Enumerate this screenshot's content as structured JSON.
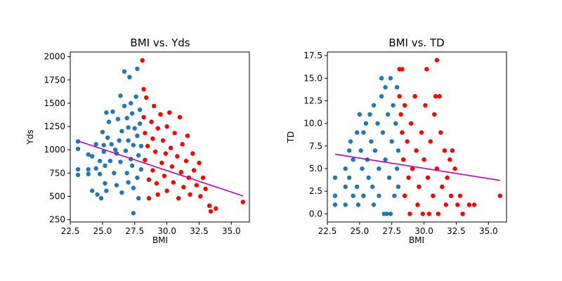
{
  "colors": {
    "blue": "#1f77b4",
    "red": "#ff0000",
    "fit": "#bf00bf"
  },
  "chart_data": [
    {
      "type": "scatter",
      "title": "BMI vs. Yds",
      "xlabel": "BMI",
      "ylabel": "Yds",
      "xlim": [
        22.5,
        36.4
      ],
      "ylim": [
        225,
        2050
      ],
      "xticks": [
        22.5,
        25.0,
        27.5,
        30.0,
        32.5,
        35.0
      ],
      "xtick_labels": [
        "22.5",
        "25.0",
        "27.5",
        "30.0",
        "32.5",
        "35.0"
      ],
      "yticks": [
        250,
        500,
        750,
        1000,
        1250,
        1500,
        1750,
        2000
      ],
      "ytick_labels": [
        "250",
        "500",
        "750",
        "1000",
        "1250",
        "1500",
        "1750",
        "2000"
      ],
      "grid": false,
      "series": [
        {
          "color": "#1f77b4",
          "points": [
            [
              23.1,
              1090
            ],
            [
              23.1,
              1010
            ],
            [
              23.1,
              790
            ],
            [
              23.1,
              730
            ],
            [
              23.9,
              950
            ],
            [
              23.9,
              790
            ],
            [
              23.9,
              740
            ],
            [
              24.2,
              930
            ],
            [
              24.2,
              560
            ],
            [
              24.5,
              1060
            ],
            [
              24.5,
              800
            ],
            [
              24.6,
              520
            ],
            [
              24.8,
              880
            ],
            [
              24.8,
              740
            ],
            [
              24.9,
              480
            ],
            [
              25.0,
              1190
            ],
            [
              25.1,
              1050
            ],
            [
              25.1,
              980
            ],
            [
              25.2,
              830
            ],
            [
              25.2,
              640
            ],
            [
              25.3,
              1400
            ],
            [
              25.3,
              560
            ],
            [
              25.4,
              1130
            ],
            [
              25.5,
              1300
            ],
            [
              25.6,
              880
            ],
            [
              25.7,
              1060
            ],
            [
              25.8,
              1410
            ],
            [
              25.9,
              750
            ],
            [
              26.0,
              1000
            ],
            [
              26.1,
              960
            ],
            [
              26.1,
              620
            ],
            [
              26.2,
              1330
            ],
            [
              26.3,
              1100
            ],
            [
              26.4,
              1580
            ],
            [
              26.4,
              870
            ],
            [
              26.5,
              1200
            ],
            [
              26.5,
              540
            ],
            [
              26.7,
              1840
            ],
            [
              26.7,
              1470
            ],
            [
              26.8,
              990
            ],
            [
              26.9,
              750
            ],
            [
              26.9,
              1340
            ],
            [
              27.0,
              1240
            ],
            [
              27.0,
              1100
            ],
            [
              27.0,
              650
            ],
            [
              27.1,
              1780
            ],
            [
              27.2,
              1500
            ],
            [
              27.2,
              900
            ],
            [
              27.3,
              1390
            ],
            [
              27.3,
              830
            ],
            [
              27.4,
              1050
            ],
            [
              27.4,
              590
            ],
            [
              27.4,
              320
            ],
            [
              27.5,
              1230
            ],
            [
              27.6,
              1570
            ],
            [
              27.7,
              1870
            ],
            [
              27.7,
              1150
            ],
            [
              27.7,
              700
            ],
            [
              27.8,
              940
            ],
            [
              27.8,
              480
            ],
            [
              27.9,
              1430
            ],
            [
              27.9,
              1280
            ],
            [
              28.0,
              1040
            ],
            [
              28.0,
              790
            ]
          ]
        },
        {
          "color": "#ff0000",
          "points": [
            [
              28.1,
              1960
            ],
            [
              28.2,
              1650
            ],
            [
              28.2,
              1350
            ],
            [
              28.3,
              1180
            ],
            [
              28.3,
              890
            ],
            [
              28.4,
              1560
            ],
            [
              28.5,
              1040
            ],
            [
              28.6,
              680
            ],
            [
              28.6,
              480
            ],
            [
              28.8,
              1300
            ],
            [
              28.9,
              1120
            ],
            [
              28.9,
              780
            ],
            [
              29.0,
              1470
            ],
            [
              29.1,
              980
            ],
            [
              29.2,
              640
            ],
            [
              29.3,
              1230
            ],
            [
              29.3,
              520
            ],
            [
              29.5,
              1380
            ],
            [
              29.6,
              860
            ],
            [
              29.7,
              1100
            ],
            [
              29.8,
              720
            ],
            [
              29.9,
              960
            ],
            [
              30.0,
              1250
            ],
            [
              30.0,
              560
            ],
            [
              30.2,
              1400
            ],
            [
              30.3,
              1020
            ],
            [
              30.4,
              820
            ],
            [
              30.5,
              650
            ],
            [
              30.6,
              1180
            ],
            [
              30.8,
              930
            ],
            [
              30.9,
              480
            ],
            [
              31.0,
              1350
            ],
            [
              31.1,
              760
            ],
            [
              31.2,
              1060
            ],
            [
              31.3,
              600
            ],
            [
              31.5,
              880
            ],
            [
              31.6,
              1150
            ],
            [
              31.7,
              700
            ],
            [
              31.8,
              520
            ],
            [
              32.0,
              960
            ],
            [
              32.1,
              780
            ],
            [
              32.3,
              620
            ],
            [
              32.5,
              860
            ],
            [
              32.6,
              500
            ],
            [
              32.8,
              700
            ],
            [
              33.0,
              580
            ],
            [
              33.3,
              400
            ],
            [
              33.4,
              340
            ],
            [
              33.8,
              370
            ],
            [
              35.9,
              440
            ]
          ]
        }
      ],
      "trendline": {
        "color": "#bf00bf",
        "points": [
          [
            23.1,
            1095
          ],
          [
            35.9,
            505
          ]
        ]
      }
    },
    {
      "type": "scatter",
      "title": "BMI vs. TD",
      "xlabel": "BMI",
      "ylabel": "TD",
      "xlim": [
        22.5,
        36.4
      ],
      "ylim": [
        -0.9,
        17.9
      ],
      "xticks": [
        22.5,
        25.0,
        27.5,
        30.0,
        32.5,
        35.0
      ],
      "xtick_labels": [
        "22.5",
        "25.0",
        "27.5",
        "30.0",
        "32.5",
        "35.0"
      ],
      "yticks": [
        0.0,
        2.5,
        5.0,
        7.5,
        10.0,
        12.5,
        15.0,
        17.5
      ],
      "ytick_labels": [
        "0.0",
        "2.5",
        "5.0",
        "7.5",
        "10.0",
        "12.5",
        "15.0",
        "17.5"
      ],
      "grid": false,
      "series": [
        {
          "color": "#1f77b4",
          "points": [
            [
              23.1,
              4
            ],
            [
              23.1,
              2
            ],
            [
              23.1,
              1
            ],
            [
              23.9,
              5
            ],
            [
              23.9,
              3
            ],
            [
              23.9,
              1
            ],
            [
              24.2,
              7
            ],
            [
              24.2,
              4
            ],
            [
              24.3,
              8
            ],
            [
              24.5,
              6
            ],
            [
              24.5,
              2
            ],
            [
              24.8,
              9
            ],
            [
              24.8,
              3
            ],
            [
              24.9,
              1
            ],
            [
              25.0,
              11
            ],
            [
              25.1,
              7
            ],
            [
              25.2,
              5
            ],
            [
              25.3,
              9
            ],
            [
              25.3,
              2
            ],
            [
              25.5,
              10
            ],
            [
              25.6,
              6
            ],
            [
              25.7,
              4
            ],
            [
              25.8,
              11
            ],
            [
              25.9,
              8
            ],
            [
              26.0,
              3
            ],
            [
              26.1,
              12
            ],
            [
              26.1,
              1
            ],
            [
              26.2,
              7
            ],
            [
              26.4,
              10
            ],
            [
              26.5,
              5
            ],
            [
              26.5,
              2
            ],
            [
              26.7,
              15
            ],
            [
              26.7,
              13
            ],
            [
              26.8,
              9
            ],
            [
              26.9,
              0
            ],
            [
              27.0,
              14
            ],
            [
              27.0,
              6
            ],
            [
              27.1,
              0
            ],
            [
              27.2,
              11
            ],
            [
              27.3,
              4
            ],
            [
              27.4,
              15
            ],
            [
              27.4,
              0
            ],
            [
              27.5,
              8
            ],
            [
              27.6,
              12
            ],
            [
              27.7,
              2
            ],
            [
              27.8,
              10
            ],
            [
              27.9,
              14
            ],
            [
              27.9,
              5
            ],
            [
              28.0,
              7
            ],
            [
              28.0,
              3
            ]
          ]
        },
        {
          "color": "#ff0000",
          "points": [
            [
              28.1,
              16
            ],
            [
              28.1,
              13
            ],
            [
              28.2,
              11
            ],
            [
              28.3,
              16
            ],
            [
              28.3,
              9
            ],
            [
              28.4,
              6
            ],
            [
              28.5,
              12
            ],
            [
              28.5,
              2
            ],
            [
              28.7,
              8
            ],
            [
              28.8,
              4
            ],
            [
              28.9,
              0
            ],
            [
              29.0,
              10
            ],
            [
              29.1,
              5
            ],
            [
              29.3,
              13
            ],
            [
              29.4,
              7
            ],
            [
              29.5,
              1
            ],
            [
              29.6,
              3
            ],
            [
              29.8,
              9
            ],
            [
              29.9,
              0
            ],
            [
              30.0,
              6
            ],
            [
              30.1,
              12
            ],
            [
              30.2,
              16
            ],
            [
              30.3,
              4
            ],
            [
              30.4,
              0
            ],
            [
              30.5,
              8
            ],
            [
              30.7,
              2
            ],
            [
              30.8,
              11
            ],
            [
              30.9,
              13
            ],
            [
              31.0,
              17
            ],
            [
              31.0,
              5
            ],
            [
              31.1,
              0
            ],
            [
              31.2,
              13
            ],
            [
              31.3,
              9
            ],
            [
              31.4,
              3
            ],
            [
              31.6,
              7
            ],
            [
              31.7,
              1
            ],
            [
              31.8,
              4
            ],
            [
              32.0,
              6
            ],
            [
              32.1,
              2
            ],
            [
              32.2,
              7
            ],
            [
              32.4,
              5
            ],
            [
              32.6,
              1
            ],
            [
              32.8,
              2
            ],
            [
              33.0,
              0
            ],
            [
              33.5,
              1
            ],
            [
              33.9,
              1
            ],
            [
              35.9,
              2
            ]
          ]
        }
      ],
      "trendline": {
        "color": "#bf00bf",
        "points": [
          [
            23.1,
            6.6
          ],
          [
            35.9,
            3.7
          ]
        ]
      }
    }
  ]
}
